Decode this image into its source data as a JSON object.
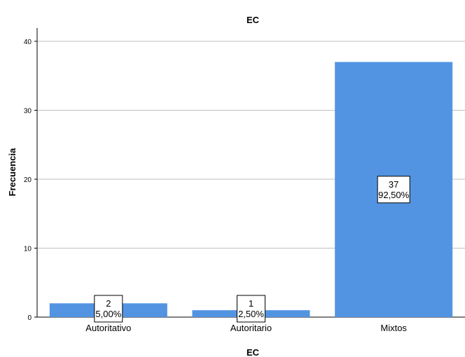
{
  "chart_data": {
    "type": "bar",
    "title": "EC",
    "xlabel": "EC",
    "ylabel": "Frecuencia",
    "ylim": [
      0,
      42
    ],
    "yticks": [
      0,
      10,
      20,
      30,
      40
    ],
    "grid": true,
    "categories": [
      "Autoritativo",
      "Autoritario",
      "Mixtos"
    ],
    "values": [
      2,
      1,
      37
    ],
    "percent_labels": [
      "5,00%",
      "2,50%",
      "92,50%"
    ],
    "bar_color": "#5294E2"
  }
}
